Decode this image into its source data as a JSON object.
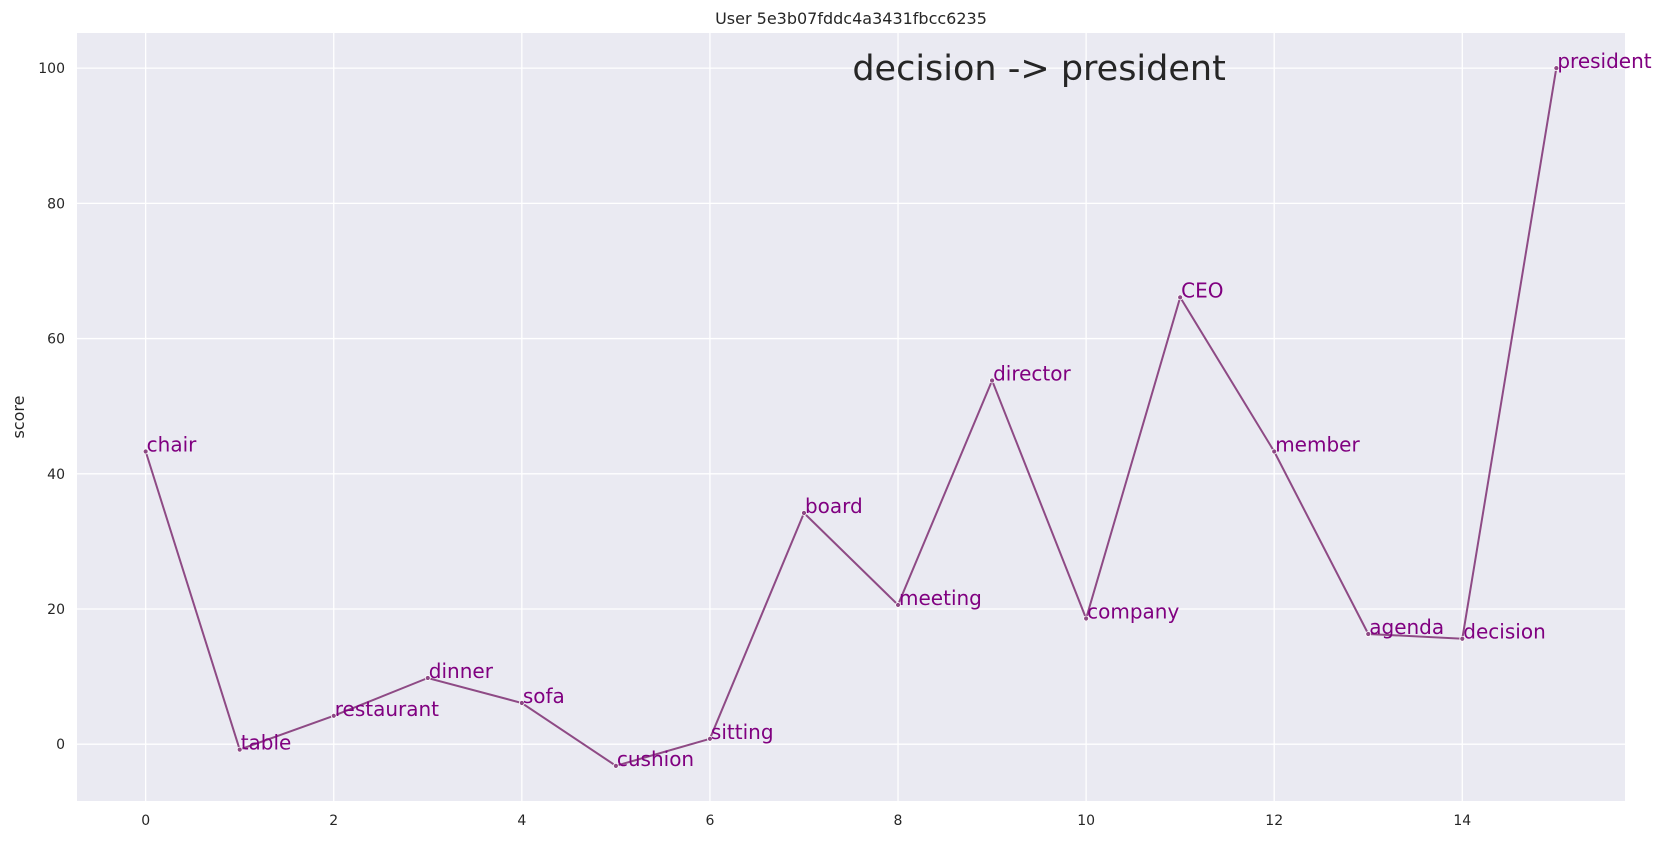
{
  "chart_data": {
    "type": "line",
    "title": "User 5e3b07fddc4a3431fbcc6235",
    "annotation": "decision -> president",
    "xlabel": "",
    "ylabel": "score",
    "x": [
      0,
      1,
      2,
      3,
      4,
      5,
      6,
      7,
      8,
      9,
      10,
      11,
      12,
      13,
      14,
      15
    ],
    "y": [
      43.3,
      -0.8,
      4.2,
      9.8,
      6.1,
      -3.2,
      0.8,
      34.2,
      20.6,
      53.8,
      18.6,
      66.1,
      43.3,
      16.3,
      15.6,
      100
    ],
    "point_labels": [
      "chair",
      "table",
      "restaurant",
      "dinner",
      "sofa",
      "cushion",
      "sitting",
      "board",
      "meeting",
      "director",
      "company",
      "CEO",
      "member",
      "agenda",
      "decision",
      "president"
    ],
    "xlim": [
      -0.73,
      15.73
    ],
    "ylim": [
      -8.4,
      105.2
    ],
    "xticks": [
      0,
      2,
      4,
      6,
      8,
      10,
      12,
      14
    ],
    "yticks": [
      0,
      20,
      40,
      60,
      80,
      100
    ],
    "grid": true,
    "colors": {
      "background": "#eaeaf2",
      "grid": "#ffffff",
      "line": "#8e4a85",
      "label": "#800080"
    }
  }
}
